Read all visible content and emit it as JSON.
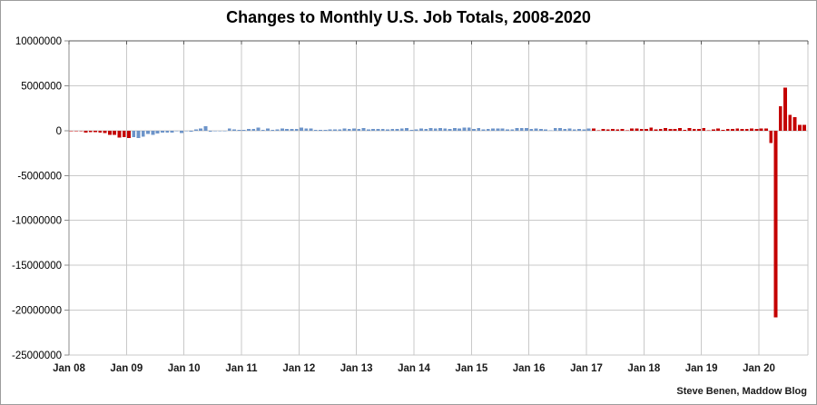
{
  "title": "Changes to Monthly U.S. Job Totals, 2008-2020",
  "attribution": "Steve Benen, Maddow Blog",
  "chart_data": {
    "type": "bar",
    "title": "Changes to Monthly U.S. Job Totals, 2008-2020",
    "xlabel": "",
    "ylabel": "",
    "unit": "jobs, values stored in thousands",
    "x_start": "2008-01",
    "x_end": "2020-10",
    "ylim": [
      -25000000,
      10000000
    ],
    "grid": true,
    "legend": "none",
    "y_ticks": [
      10000000,
      5000000,
      0,
      -5000000,
      -10000000,
      -15000000,
      -20000000,
      -25000000
    ],
    "y_tick_labels": [
      "10000000",
      "5000000",
      "0",
      "-5000000",
      "-10000000",
      "-15000000",
      "-20000000",
      "-25000000"
    ],
    "x_tick_labels": [
      "Jan 08",
      "Jan 09",
      "Jan 10",
      "Jan 11",
      "Jan 12",
      "Jan 13",
      "Jan 14",
      "Jan 15",
      "Jan 16",
      "Jan 17",
      "Jan 18",
      "Jan 19",
      "Jan 20"
    ],
    "colors": {
      "republican": "#C40000",
      "democrat": "#6D94C9"
    },
    "grid_color": "#C9C9C9",
    "axis_color": "#8C8C8C",
    "top_axis_color": "#595959",
    "segments": [
      {
        "from_index": 0,
        "to_index": 12,
        "color_key": "republican"
      },
      {
        "from_index": 13,
        "to_index": 108,
        "color_key": "democrat"
      },
      {
        "from_index": 109,
        "to_index": 153,
        "color_key": "republican"
      }
    ],
    "values_thousands": [
      -17,
      -86,
      -80,
      -214,
      -182,
      -172,
      -210,
      -259,
      -452,
      -474,
      -765,
      -697,
      -798,
      -701,
      -826,
      -684,
      -354,
      -467,
      -327,
      -216,
      -227,
      -198,
      -6,
      -283,
      -40,
      -100,
      156,
      251,
      516,
      -122,
      -61,
      -42,
      -57,
      241,
      137,
      71,
      70,
      168,
      212,
      322,
      102,
      217,
      106,
      122,
      221,
      183,
      164,
      196,
      360,
      226,
      243,
      96,
      110,
      88,
      160,
      150,
      161,
      225,
      203,
      214,
      197,
      280,
      141,
      199,
      199,
      201,
      149,
      202,
      164,
      237,
      274,
      84,
      144,
      222,
      203,
      304,
      229,
      267,
      243,
      203,
      271,
      243,
      321,
      329,
      201,
      266,
      119,
      187,
      260,
      245,
      223,
      150,
      149,
      295,
      280,
      271,
      168,
      233,
      186,
      144,
      43,
      297,
      291,
      176,
      249,
      124,
      164,
      155,
      216,
      232,
      50,
      207,
      145,
      210,
      138,
      208,
      18,
      261,
      216,
      175,
      176,
      324,
      155,
      175,
      268,
      208,
      178,
      270,
      108,
      277,
      196,
      182,
      312,
      56,
      153,
      216,
      62,
      178,
      166,
      219,
      208,
      185,
      261,
      184,
      214,
      251,
      -1373,
      -20787,
      2725,
      4781,
      1761,
      1493,
      661,
      638
    ]
  }
}
